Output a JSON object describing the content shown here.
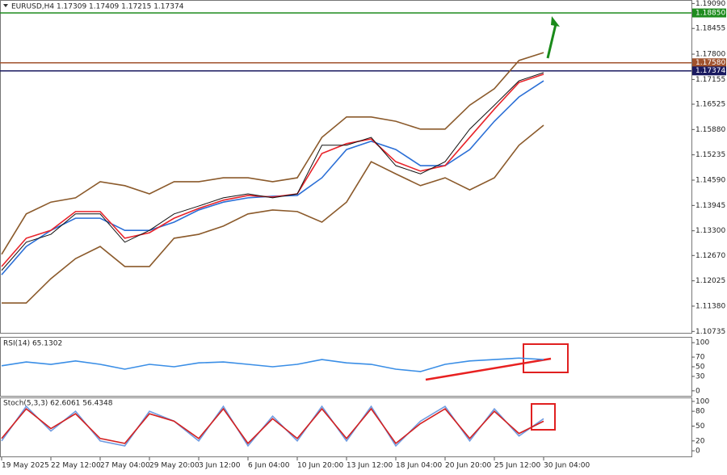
{
  "chart_data": [
    {
      "type": "line",
      "title": "EURUSD,H4  1.17309 1.17409 1.17215 1.17374",
      "categories": [
        "19 May 2025",
        null,
        "22 May 12:00",
        null,
        "27 May 04:00",
        null,
        "29 May 20:00",
        null,
        "3 Jun 12:00",
        null,
        "6 Jun 04:00",
        null,
        "10 Jun 20:00",
        null,
        "13 Jun 12:00",
        null,
        "18 Jun 04:00",
        null,
        "20 Jun 20:00",
        null,
        "25 Jun 12:00",
        null,
        "30 Jun 04:00"
      ],
      "ylim": [
        1.107,
        1.1918
      ],
      "yticks": [
        {
          "value": 1.1909,
          "label": "1.19090"
        },
        1.18455,
        {
          "value": 1.178,
          "label": "1.17800"
        },
        1.17155,
        1.16525,
        {
          "value": 1.1588,
          "label": "1.15880"
        },
        1.15235,
        {
          "value": 1.1459,
          "label": "1.14590"
        },
        1.13945,
        {
          "value": 1.133,
          "label": "1.13300"
        },
        {
          "value": 1.1267,
          "label": "1.12670"
        },
        1.12025,
        {
          "value": 1.1138,
          "label": "1.11380"
        },
        1.10735
      ],
      "levels": [
        {
          "value": 1.1885,
          "label": "1.18850",
          "color": "#1e8c1e"
        },
        {
          "value": 1.1758,
          "label": "1.17580",
          "color": "#a0522d"
        },
        {
          "value": 1.17374,
          "label": "1.17374",
          "color": "#1a1a60"
        }
      ],
      "series": [
        {
          "color": "#8b5a2b",
          "values": [
            1.127,
            1.1373,
            1.1403,
            1.1414,
            1.1455,
            1.1445,
            1.1424,
            1.1455,
            1.1455,
            1.1465,
            1.1465,
            1.1455,
            1.1465,
            1.1568,
            1.162,
            1.162,
            1.1609,
            1.1589,
            1.1589,
            1.165,
            1.1692,
            1.1764,
            1.1784
          ]
        },
        {
          "color": "#8b5a2b",
          "values": [
            1.1146,
            1.1146,
            1.1208,
            1.1259,
            1.129,
            1.1239,
            1.1239,
            1.1311,
            1.1321,
            1.1342,
            1.1373,
            1.1383,
            1.1379,
            1.1352,
            1.1403,
            1.1506,
            1.1475,
            1.1445,
            1.1465,
            1.1434,
            1.1465,
            1.1548,
            1.1599
          ]
        },
        {
          "color": "#2b6fd6",
          "values": [
            1.1218,
            1.129,
            1.1331,
            1.1362,
            1.1362,
            1.1331,
            1.1331,
            1.1352,
            1.1383,
            1.1403,
            1.1414,
            1.1418,
            1.142,
            1.1465,
            1.1537,
            1.1558,
            1.1537,
            1.1496,
            1.1496,
            1.1537,
            1.1609,
            1.1671,
            1.1712
          ]
        },
        {
          "color": "#e8232a",
          "values": [
            1.1239,
            1.1311,
            1.1331,
            1.1379,
            1.1379,
            1.1311,
            1.1325,
            1.1362,
            1.1387,
            1.1408,
            1.142,
            1.1416,
            1.1424,
            1.1527,
            1.1552,
            1.1564,
            1.1506,
            1.1482,
            1.1496,
            1.1568,
            1.164,
            1.1708,
            1.1729
          ]
        },
        {
          "color": "#111111",
          "values": [
            1.1229,
            1.1301,
            1.1321,
            1.1373,
            1.1373,
            1.1301,
            1.1331,
            1.1373,
            1.1393,
            1.1414,
            1.1424,
            1.1414,
            1.1424,
            1.1548,
            1.1548,
            1.1568,
            1.1496,
            1.1475,
            1.1506,
            1.1589,
            1.165,
            1.1712,
            1.1733
          ]
        }
      ]
    },
    {
      "type": "line",
      "title": "RSI(14) 65.1302",
      "ylim": [
        -12,
        112
      ],
      "yticks": [
        100,
        70,
        50,
        30,
        0
      ],
      "series": [
        {
          "color": "#3a8ee6",
          "values": [
            52,
            60,
            55,
            62,
            55,
            45,
            55,
            50,
            58,
            60,
            55,
            50,
            55,
            65,
            58,
            55,
            45,
            40,
            55,
            62,
            65,
            68,
            65
          ]
        }
      ]
    },
    {
      "type": "line",
      "title": "Stoch(5,3,3) 62.6061 56.4348",
      "ylim": [
        -13,
        108
      ],
      "yticks": [
        100,
        80,
        50,
        20,
        0
      ],
      "series": [
        {
          "color": "#6f9be0",
          "values": [
            20,
            90,
            40,
            80,
            20,
            10,
            80,
            60,
            20,
            90,
            10,
            70,
            20,
            90,
            20,
            90,
            10,
            60,
            90,
            20,
            85,
            30,
            65
          ]
        },
        {
          "color": "#d42020",
          "values": [
            25,
            85,
            45,
            75,
            25,
            15,
            75,
            60,
            25,
            85,
            15,
            65,
            25,
            85,
            25,
            85,
            15,
            55,
            85,
            25,
            80,
            35,
            60
          ]
        }
      ]
    }
  ]
}
